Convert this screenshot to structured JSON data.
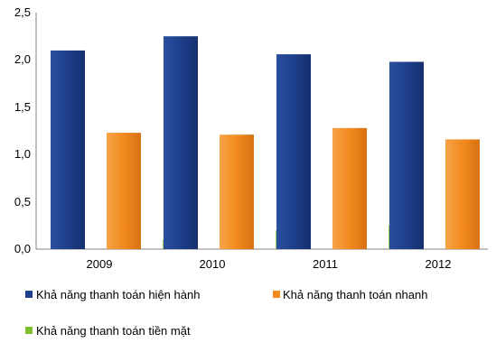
{
  "chart_data": {
    "type": "bar",
    "categories": [
      "2009",
      "2010",
      "2011",
      "2012"
    ],
    "series": [
      {
        "name": "Khả năng thanh toán hiện hành",
        "values": [
          2.1,
          2.25,
          2.06,
          1.98
        ],
        "color": "#1f3f8f"
      },
      {
        "name": "Khả năng thanh toán nhanh",
        "values": [
          1.23,
          1.21,
          1.28,
          1.16
        ],
        "color": "#f28a1e"
      },
      {
        "name": "Khả năng thanh toán tiền mặt",
        "values": [
          0.1,
          0.2,
          0.25,
          0.12
        ],
        "color": "#7fbf2f"
      }
    ],
    "ylim": [
      0,
      2.5
    ],
    "yticks": [
      "0,0",
      "0,5",
      "1,0",
      "1,5",
      "2,0",
      "2,5"
    ],
    "grid": false,
    "legend": "bottom"
  }
}
